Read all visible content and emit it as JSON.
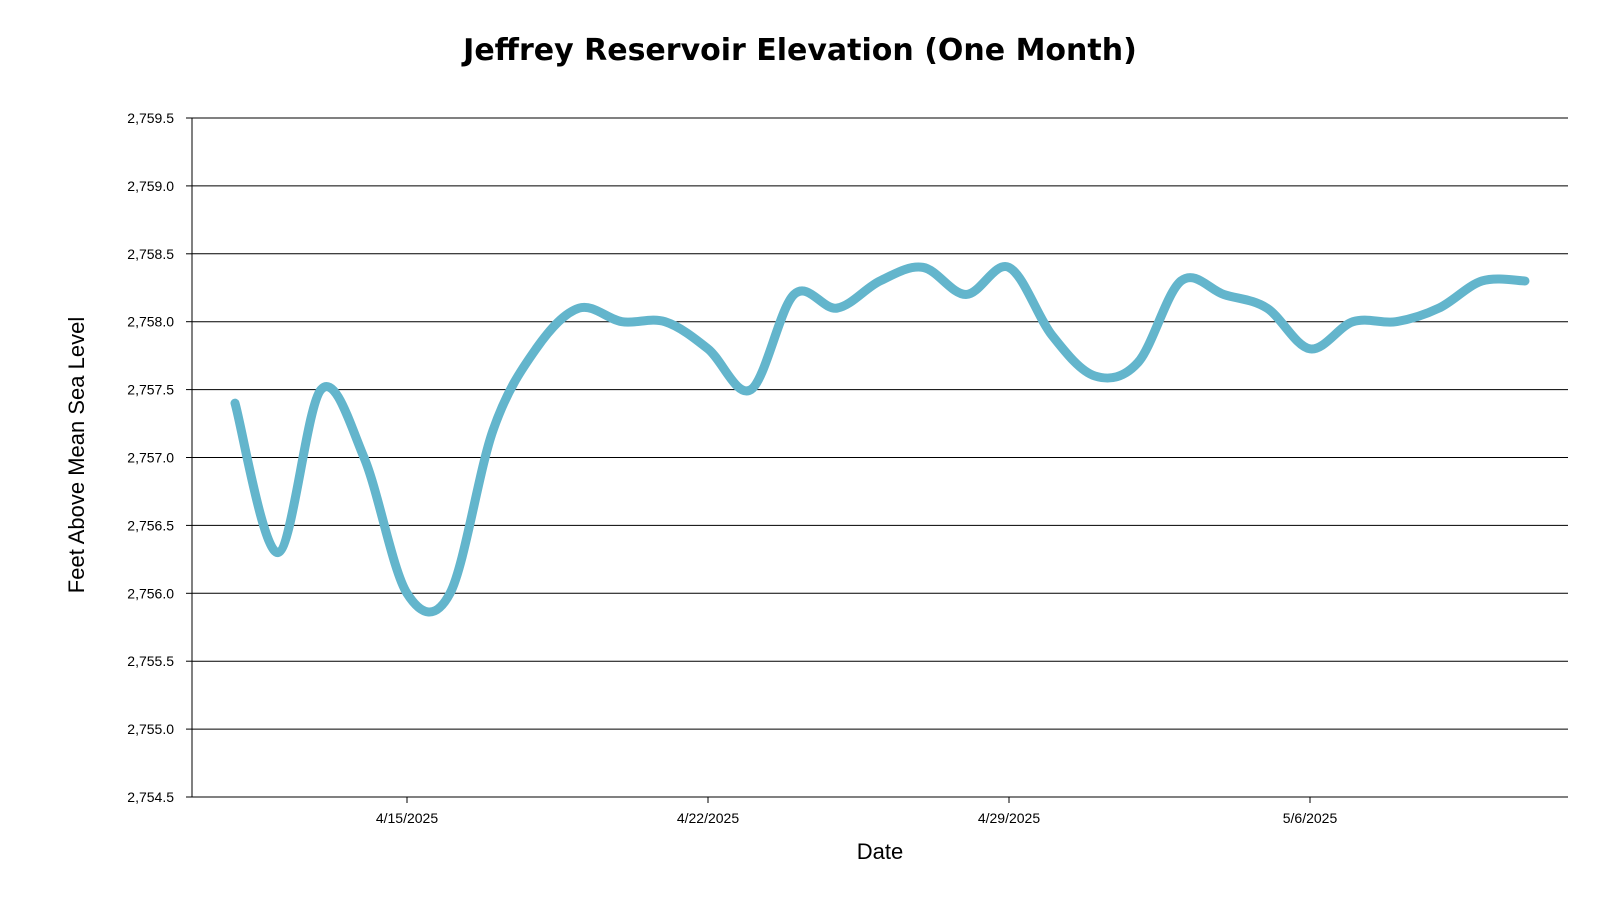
{
  "chart_data": {
    "type": "line",
    "title": "Jeffrey Reservoir Elevation (One Month)",
    "xlabel": "Date",
    "ylabel": "Feet Above Mean Sea Level",
    "ylim": [
      2754.5,
      2759.5
    ],
    "y_ticks": [
      "2,754.5",
      "2,755.0",
      "2,755.5",
      "2,756.0",
      "2,756.5",
      "2,757.0",
      "2,757.5",
      "2,758.0",
      "2,758.5",
      "2,759.0",
      "2,759.5"
    ],
    "x_ticks": [
      {
        "date": "2025-04-15",
        "label": "4/15/2025"
      },
      {
        "date": "2025-04-22",
        "label": "4/22/2025"
      },
      {
        "date": "2025-04-29",
        "label": "4/29/2025"
      },
      {
        "date": "2025-05-06",
        "label": "5/6/2025"
      }
    ],
    "x_range": [
      "2025-04-10",
      "2025-05-12"
    ],
    "grid": true,
    "color": "#63b5cc",
    "series": [
      {
        "x": [
          "2025-04-11",
          "2025-04-12",
          "2025-04-13",
          "2025-04-14",
          "2025-04-15",
          "2025-04-16",
          "2025-04-17",
          "2025-04-18",
          "2025-04-19",
          "2025-04-20",
          "2025-04-21",
          "2025-04-22",
          "2025-04-23",
          "2025-04-24",
          "2025-04-25",
          "2025-04-26",
          "2025-04-27",
          "2025-04-28",
          "2025-04-29",
          "2025-04-30",
          "2025-05-01",
          "2025-05-02",
          "2025-05-03",
          "2025-05-04",
          "2025-05-05",
          "2025-05-06",
          "2025-05-07",
          "2025-05-08",
          "2025-05-09",
          "2025-05-10",
          "2025-05-11"
        ],
        "values": [
          2757.4,
          2756.3,
          2757.5,
          2757.0,
          2756.0,
          2756.0,
          2757.2,
          2757.8,
          2758.1,
          2758.0,
          2758.0,
          2757.8,
          2757.5,
          2758.2,
          2758.1,
          2758.3,
          2758.4,
          2758.2,
          2758.4,
          2757.9,
          2757.6,
          2757.7,
          2758.3,
          2758.2,
          2758.1,
          2757.8,
          2758.0,
          2758.0,
          2758.1,
          2758.3,
          2758.3
        ]
      }
    ]
  }
}
